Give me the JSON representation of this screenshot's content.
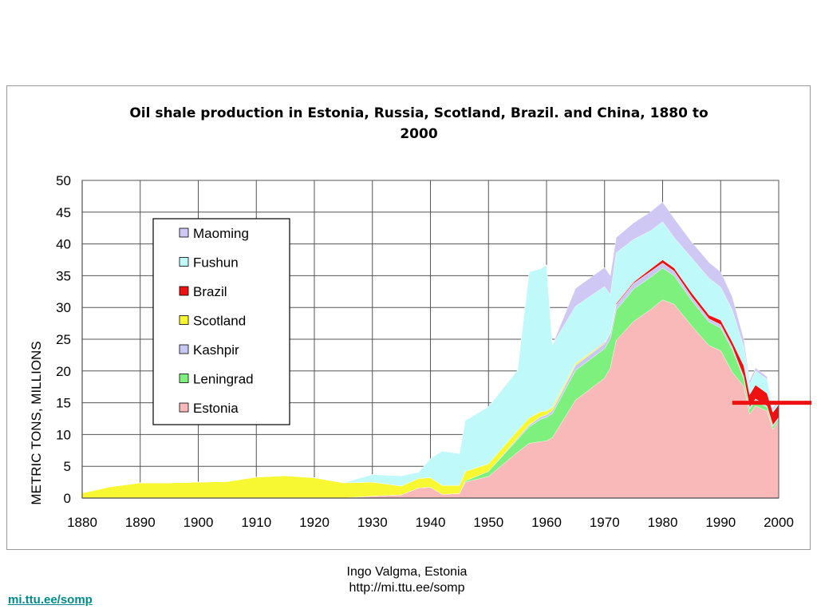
{
  "footer": {
    "credit_line1": "Ingo Valgma, Estonia",
    "credit_line2": "http://mi.ttu.ee/somp",
    "link_text": "mi.ttu.ee/somp"
  },
  "chart_data": {
    "type": "area",
    "stacked": true,
    "title_lines": [
      "Oil shale production in Estonia, Russia, Scotland, Brazil. and China, 1880 to",
      "2000"
    ],
    "ylabel": "METRIC TONS, MILLIONS",
    "xlabel": "",
    "xlim": [
      1880,
      2000
    ],
    "ylim": [
      0,
      50
    ],
    "xticks": [
      1880,
      1890,
      1900,
      1910,
      1920,
      1930,
      1940,
      1950,
      1960,
      1970,
      1980,
      1990,
      2000
    ],
    "yticks": [
      0,
      5,
      10,
      15,
      20,
      25,
      30,
      35,
      40,
      45,
      50
    ],
    "grid": true,
    "legend_position": "upper-left",
    "annotation": {
      "type": "horizontal-marker",
      "y": 15,
      "x_from": 1992,
      "color": "#ee1111"
    },
    "x": [
      1880,
      1885,
      1890,
      1895,
      1900,
      1905,
      1910,
      1915,
      1920,
      1925,
      1930,
      1935,
      1938,
      1940,
      1942,
      1945,
      1946,
      1950,
      1955,
      1957,
      1959,
      1960,
      1961,
      1965,
      1970,
      1971,
      1972,
      1975,
      1978,
      1980,
      1982,
      1985,
      1988,
      1990,
      1992,
      1994,
      1995,
      1996,
      1998,
      1999,
      2000
    ],
    "series": [
      {
        "name": "Estonia",
        "color": "#f9b9b9",
        "values": [
          0,
          0,
          0,
          0,
          0,
          0,
          0,
          0,
          0,
          0,
          0.3,
          0.5,
          1.6,
          1.7,
          0.6,
          0.7,
          2.5,
          3.4,
          7.2,
          8.6,
          8.9,
          9.0,
          9.5,
          15.4,
          18.9,
          20.5,
          24.8,
          27.8,
          29.7,
          31.2,
          30.5,
          27.1,
          24.0,
          23.2,
          19.8,
          17.6,
          13.2,
          14.5,
          13.7,
          10.8,
          12.1
        ]
      },
      {
        "name": "Leningrad",
        "color": "#7ef07e",
        "values": [
          0,
          0,
          0,
          0,
          0,
          0,
          0,
          0,
          0,
          0,
          0,
          0,
          0,
          0,
          0,
          0,
          0.2,
          0.8,
          2.0,
          2.6,
          3.5,
          3.7,
          3.8,
          4.7,
          4.6,
          4.6,
          4.8,
          5.1,
          5.1,
          5.0,
          4.5,
          4.0,
          3.7,
          3.6,
          3.6,
          1.2,
          0.8,
          0.8,
          0.6,
          0.5,
          0.4
        ]
      },
      {
        "name": "Kashpir",
        "color": "#c8c8f4",
        "values": [
          0,
          0,
          0,
          0,
          0,
          0,
          0,
          0,
          0,
          0,
          0,
          0,
          0,
          0,
          0,
          0,
          0,
          0,
          0.2,
          0.3,
          0.4,
          0.4,
          0.5,
          0.8,
          0.8,
          0.8,
          0.8,
          0.9,
          0.9,
          0.8,
          0.7,
          0.6,
          0.5,
          0.5,
          0.4,
          0.3,
          0.3,
          0.3,
          0.2,
          0.2,
          0.2
        ]
      },
      {
        "name": "Scotland",
        "color": "#f7f732",
        "values": [
          0.8,
          1.8,
          2.4,
          2.4,
          2.5,
          2.6,
          3.3,
          3.5,
          3.2,
          2.4,
          2.2,
          1.4,
          1.5,
          1.5,
          1.4,
          1.3,
          1.5,
          1.2,
          1.2,
          1.1,
          0.8,
          0.6,
          0.5,
          0.3,
          0.1,
          0,
          0,
          0,
          0,
          0,
          0,
          0,
          0,
          0,
          0,
          0,
          0,
          0,
          0,
          0,
          0
        ]
      },
      {
        "name": "Brazil",
        "color": "#ee1111",
        "values": [
          0,
          0,
          0,
          0,
          0,
          0,
          0,
          0,
          0,
          0,
          0,
          0,
          0,
          0,
          0,
          0,
          0,
          0,
          0,
          0,
          0,
          0,
          0,
          0,
          0.1,
          0.1,
          0.2,
          0.2,
          0.4,
          0.5,
          0.5,
          0.6,
          0.6,
          0.7,
          0.8,
          1.7,
          2.0,
          2.2,
          2.0,
          2.0,
          2.0
        ]
      },
      {
        "name": "Fushun",
        "color": "#bff9f9",
        "values": [
          0,
          0,
          0,
          0,
          0,
          0,
          0,
          0,
          0,
          0,
          1.2,
          1.6,
          1.0,
          3.0,
          5.4,
          5.0,
          8.0,
          9.0,
          9.5,
          23.0,
          22.5,
          23.0,
          9.8,
          9.0,
          8.8,
          6.0,
          8.0,
          6.7,
          6.0,
          6.0,
          4.8,
          5.5,
          5.8,
          5.2,
          5.0,
          3.0,
          1.6,
          2.2,
          2.2,
          0.3,
          0.4
        ]
      },
      {
        "name": "Maoming",
        "color": "#cfc8f4",
        "values": [
          0,
          0,
          0,
          0,
          0,
          0,
          0,
          0,
          0,
          0,
          0,
          0,
          0,
          0,
          0,
          0,
          0,
          0,
          0,
          0,
          0,
          0,
          0,
          2.8,
          3.0,
          3.0,
          2.4,
          2.6,
          3.0,
          3.1,
          3.0,
          2.5,
          2.5,
          2.4,
          2.1,
          1.2,
          0.6,
          0.5,
          0.4,
          0.4,
          0.4
        ]
      }
    ]
  }
}
